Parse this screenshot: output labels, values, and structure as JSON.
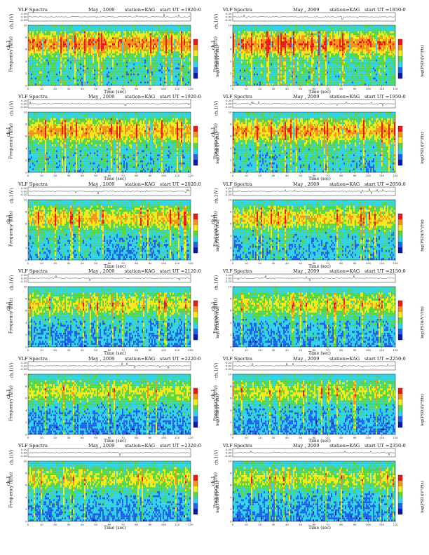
{
  "page": {
    "title": "VLF Spectra",
    "month": "May , 2009",
    "station": "station=KAG",
    "start_prefix": "start UT ="
  },
  "axes": {
    "wave_label": "ch.1(V)",
    "wave_ticks": [
      "0.20",
      "0.00",
      "-0.20"
    ],
    "channel_label": "ch.1",
    "freq_label": "Frequency (kHz)",
    "freq_ticks": [
      "0",
      "2",
      "4",
      "6",
      "8",
      "10"
    ],
    "x_label": "Time (sec)",
    "x_ticks": [
      "0",
      "10",
      "20",
      "30",
      "40",
      "50",
      "60",
      "70",
      "80",
      "90",
      "100",
      "110",
      "120"
    ],
    "colorbar_label": "log(PSD)(V²/Hz)",
    "colorbar_ticks": [
      "-",
      "-"
    ]
  },
  "colors": {
    "cold": "#0a1aa0",
    "blue": "#1e62e8",
    "cyan": "#2fd2e6",
    "green": "#58d640",
    "yellow": "#f2ea1a",
    "orange": "#f29418",
    "red": "#e8191a"
  },
  "chart_data": [
    {
      "type": "heatmap",
      "start_time": "1820:0",
      "intensity": 0.78,
      "x": [
        0,
        120
      ],
      "xlim": [
        0,
        120
      ],
      "ylim": [
        0,
        10
      ],
      "wave_ylim": [
        -0.2,
        0.2
      ]
    },
    {
      "type": "heatmap",
      "start_time": "1850:0",
      "intensity": 0.8,
      "x": [
        0,
        120
      ],
      "xlim": [
        0,
        120
      ],
      "ylim": [
        0,
        10
      ],
      "wave_ylim": [
        -0.2,
        0.2
      ]
    },
    {
      "type": "heatmap",
      "start_time": "1920:0",
      "intensity": 0.7,
      "x": [
        0,
        120
      ],
      "xlim": [
        0,
        120
      ],
      "ylim": [
        0,
        10
      ],
      "wave_ylim": [
        -0.2,
        0.2
      ]
    },
    {
      "type": "heatmap",
      "start_time": "1950:0",
      "intensity": 0.72,
      "x": [
        0,
        120
      ],
      "xlim": [
        0,
        120
      ],
      "ylim": [
        0,
        10
      ],
      "wave_ylim": [
        -0.2,
        0.2
      ]
    },
    {
      "type": "heatmap",
      "start_time": "2020:0",
      "intensity": 0.62,
      "x": [
        0,
        120
      ],
      "xlim": [
        0,
        120
      ],
      "ylim": [
        0,
        10
      ],
      "wave_ylim": [
        -0.2,
        0.2
      ]
    },
    {
      "type": "heatmap",
      "start_time": "2050:0",
      "intensity": 0.6,
      "x": [
        0,
        120
      ],
      "xlim": [
        0,
        120
      ],
      "ylim": [
        0,
        10
      ],
      "wave_ylim": [
        -0.2,
        0.2
      ]
    },
    {
      "type": "heatmap",
      "start_time": "2120:0",
      "intensity": 0.52,
      "x": [
        0,
        120
      ],
      "xlim": [
        0,
        120
      ],
      "ylim": [
        0,
        10
      ],
      "wave_ylim": [
        -0.2,
        0.2
      ]
    },
    {
      "type": "heatmap",
      "start_time": "2150:0",
      "intensity": 0.5,
      "x": [
        0,
        120
      ],
      "xlim": [
        0,
        120
      ],
      "ylim": [
        0,
        10
      ],
      "wave_ylim": [
        -0.2,
        0.2
      ]
    },
    {
      "type": "heatmap",
      "start_time": "2220:0",
      "intensity": 0.46,
      "x": [
        0,
        120
      ],
      "xlim": [
        0,
        120
      ],
      "ylim": [
        0,
        10
      ],
      "wave_ylim": [
        -0.2,
        0.2
      ]
    },
    {
      "type": "heatmap",
      "start_time": "2250:0",
      "intensity": 0.46,
      "x": [
        0,
        120
      ],
      "xlim": [
        0,
        120
      ],
      "ylim": [
        0,
        10
      ],
      "wave_ylim": [
        -0.2,
        0.2
      ]
    },
    {
      "type": "heatmap",
      "start_time": "2320:0",
      "intensity": 0.48,
      "x": [
        0,
        120
      ],
      "xlim": [
        0,
        120
      ],
      "ylim": [
        0,
        10
      ],
      "wave_ylim": [
        -0.2,
        0.2
      ]
    },
    {
      "type": "heatmap",
      "start_time": "2350:0",
      "intensity": 0.46,
      "x": [
        0,
        120
      ],
      "xlim": [
        0,
        120
      ],
      "ylim": [
        0,
        10
      ],
      "wave_ylim": [
        -0.2,
        0.2
      ]
    }
  ]
}
